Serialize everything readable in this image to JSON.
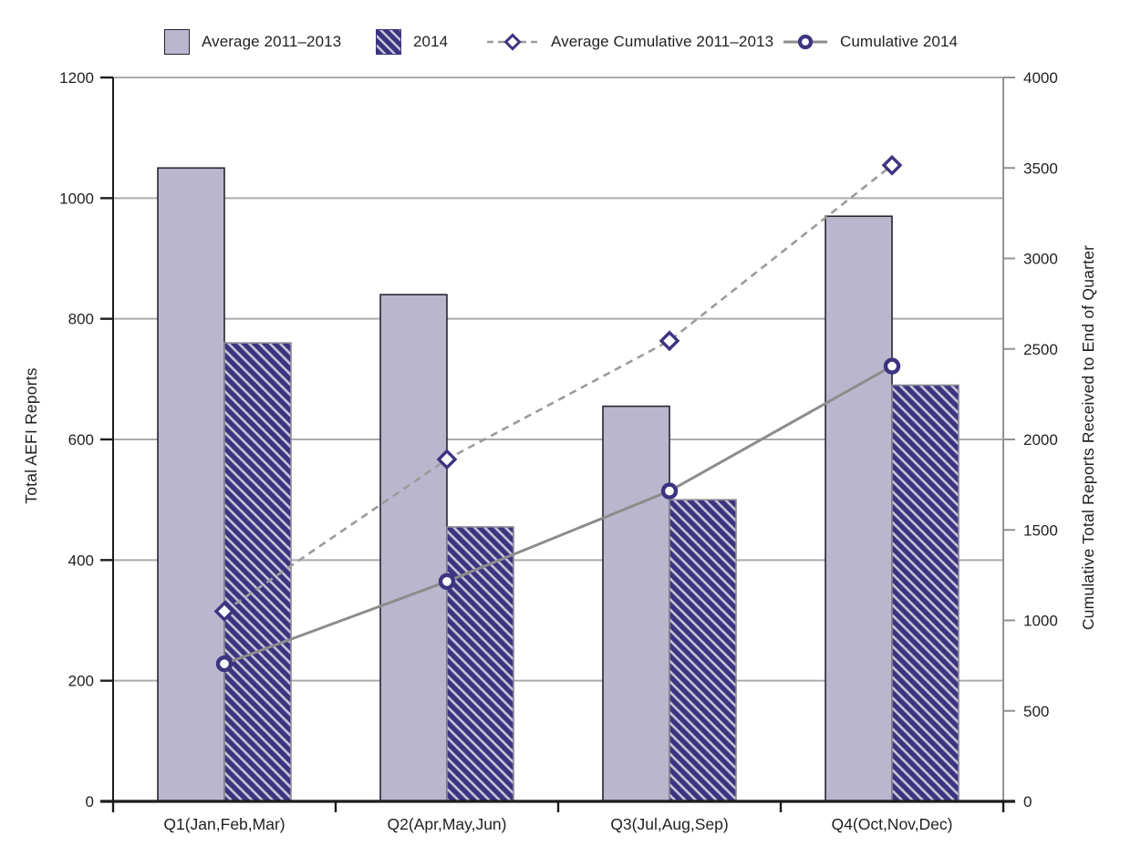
{
  "colors": {
    "light_bar": "#b9b6ce",
    "light_bar_border": "#26262e",
    "dark_bar": "#3d3480",
    "hatch_stripe": "#c6c4d6",
    "dark_bar_border": "#8a8894",
    "gridline": "#a9abae",
    "axis_black": "#1d1d1f",
    "axis_gray": "#919396",
    "line_dashed": "#9b9b9b",
    "line_solid": "#8c8c8c",
    "marker_stroke": "#3d3480",
    "marker_fill": "#ffffff",
    "text": "#231f20"
  },
  "legend": {
    "items": [
      {
        "label": "Average 2011–2013",
        "swatch": "solid-bar"
      },
      {
        "label": "2014",
        "swatch": "hatched-bar"
      },
      {
        "label": "Average Cumulative 2011–2013",
        "swatch": "dashed-line-diamond"
      },
      {
        "label": "Cumulative 2014",
        "swatch": "solid-line-circle"
      }
    ]
  },
  "chart_data": {
    "type": "bar",
    "subtype": "grouped-bars-with-cumulative-lines",
    "title": "",
    "categories": [
      "Q1(Jan,Feb,Mar)",
      "Q2(Apr,May,Jun)",
      "Q3(Jul,Aug,Sep)",
      "Q4(Oct,Nov,Dec)"
    ],
    "series": [
      {
        "name": "Average 2011–2013",
        "type": "bar",
        "axis": "left",
        "values": [
          1050,
          840,
          655,
          970
        ]
      },
      {
        "name": "2014",
        "type": "bar",
        "axis": "left",
        "values": [
          760,
          455,
          500,
          690
        ]
      },
      {
        "name": "Average Cumulative 2011–2013",
        "type": "line",
        "style": "dashed",
        "marker": "diamond",
        "axis": "right",
        "values": [
          1050,
          1890,
          2545,
          3515
        ]
      },
      {
        "name": "Cumulative 2014",
        "type": "line",
        "style": "solid",
        "marker": "circle",
        "axis": "right",
        "values": [
          760,
          1215,
          1715,
          2405
        ]
      }
    ],
    "left_axis": {
      "label": "Total AEFI Reports",
      "min": 0,
      "max": 1200,
      "step": 200,
      "tick_values": [
        0,
        200,
        400,
        600,
        800,
        1000,
        1200
      ],
      "tick_labels": [
        "0",
        "200",
        "400",
        "600",
        "800",
        "1000",
        "1200"
      ]
    },
    "right_axis": {
      "label": "Cumulative Total Reports Received to End of Quarter",
      "min": 0,
      "max": 4000,
      "step": 500,
      "tick_values": [
        0,
        500,
        1000,
        1500,
        2000,
        2500,
        3000,
        3500,
        4000
      ],
      "tick_labels": [
        "0",
        "500",
        "1000",
        "1500",
        "2000",
        "2500",
        "3000",
        "3500",
        "4000"
      ]
    },
    "grid": "horizontal-major-left-axis",
    "legend_position": "top"
  }
}
